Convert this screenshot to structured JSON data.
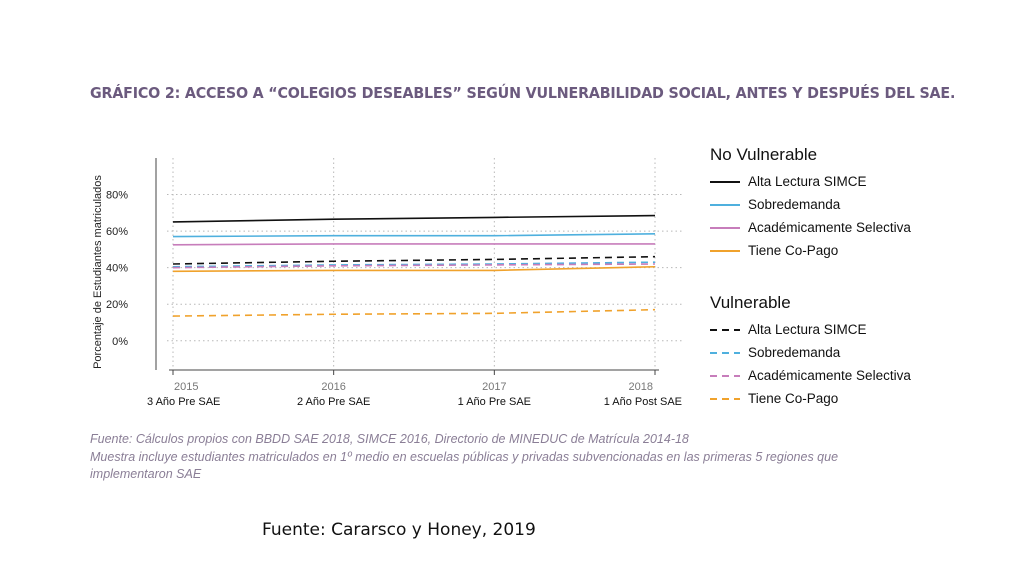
{
  "title": "GRÁFICO 2: ACCESO A “COLEGIOS DESEABLES” SEGÚN VULNERABILIDAD SOCIAL, ANTES Y DESPUÉS DEL SAE.",
  "legend": {
    "groups": [
      {
        "heading": "No Vulnerable",
        "dashed": false,
        "items": [
          "Alta Lectura SIMCE",
          "Sobredemanda",
          "Académicamente Selectiva",
          "Tiene Co-Pago"
        ]
      },
      {
        "heading": "Vulnerable",
        "dashed": true,
        "items": [
          "Alta Lectura SIMCE",
          "Sobredemanda",
          "Académicamente Selectiva",
          "Tiene Co-Pago"
        ]
      }
    ]
  },
  "notes": {
    "line1": "Fuente: Cálculos propios con BBDD SAE 2018, SIMCE 2016, Directorio de MINEDUC de Matrícula 2014-18",
    "line2": "Muestra incluye estudiantes matriculados en 1º medio en escuelas públicas y privadas subvencionadas en las primeras 5 regiones que implementaron SAE"
  },
  "source": "Fuente: Cararsco y Honey, 2019",
  "chart_data": {
    "type": "line",
    "title": "",
    "ylabel": "Porcentaje de Estudiantes matriculados",
    "xlabel": "",
    "x": [
      2015,
      2016,
      2017,
      2018
    ],
    "x_tick_years": [
      "2015",
      "2016",
      "2017",
      "2018"
    ],
    "x_tick_periods": [
      "3 Año Pre SAE",
      "2 Año Pre SAE",
      "1 Año Pre SAE",
      "1 Año Post SAE"
    ],
    "y_ticks": [
      "0%",
      "20%",
      "40%",
      "60%",
      "80%"
    ],
    "y_tick_values": [
      0,
      20,
      40,
      60,
      80
    ],
    "ylim": [
      -16,
      100
    ],
    "grid": true,
    "legend_position": "right",
    "series": [
      {
        "name": "Alta Lectura SIMCE",
        "group": "No Vulnerable",
        "color": "#111111",
        "dashed": false,
        "values": [
          65,
          66.5,
          67.5,
          68.5
        ]
      },
      {
        "name": "Sobredemanda",
        "group": "No Vulnerable",
        "color": "#4fb0de",
        "dashed": false,
        "values": [
          57,
          57.5,
          57.5,
          58.5
        ]
      },
      {
        "name": "Académicamente Selectiva",
        "group": "No Vulnerable",
        "color": "#c77dbb",
        "dashed": false,
        "values": [
          52.5,
          53,
          53,
          53
        ]
      },
      {
        "name": "Tiene Co-Pago",
        "group": "No Vulnerable",
        "color": "#f0a22c",
        "dashed": false,
        "values": [
          38,
          38.5,
          38.5,
          40.5
        ]
      },
      {
        "name": "Alta Lectura SIMCE",
        "group": "Vulnerable",
        "color": "#111111",
        "dashed": true,
        "values": [
          42,
          43.5,
          44.5,
          46
        ]
      },
      {
        "name": "Sobredemanda",
        "group": "Vulnerable",
        "color": "#4fb0de",
        "dashed": true,
        "values": [
          40.5,
          41.5,
          42,
          43
        ]
      },
      {
        "name": "Académicamente Selectiva",
        "group": "Vulnerable",
        "color": "#c77dbb",
        "dashed": true,
        "values": [
          40,
          41,
          41.5,
          42
        ]
      },
      {
        "name": "Tiene Co-Pago",
        "group": "Vulnerable",
        "color": "#f0a22c",
        "dashed": true,
        "values": [
          13.5,
          14.5,
          15,
          17
        ]
      }
    ]
  }
}
